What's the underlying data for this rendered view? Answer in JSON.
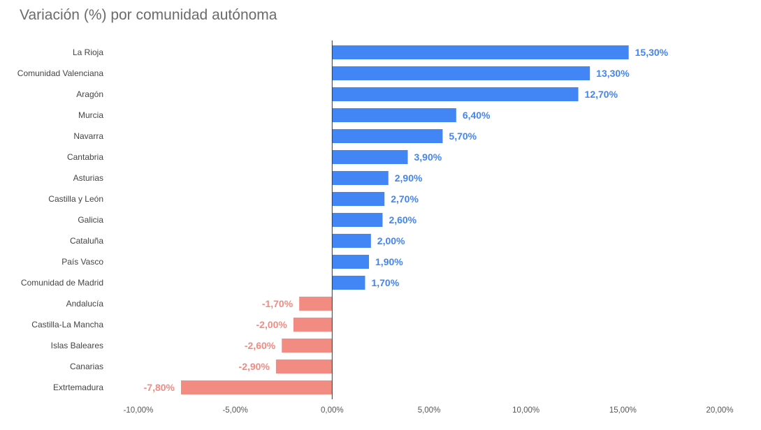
{
  "chart_data": {
    "type": "bar",
    "orientation": "horizontal",
    "title": "Variación (%) por comunidad autónoma",
    "xlabel": "",
    "ylabel": "",
    "categories": [
      "La Rioja",
      "Comunidad Valenciana",
      "Aragón",
      "Murcia",
      "Navarra",
      "Cantabria",
      "Asturias",
      "Castilla y León",
      "Galicia",
      "Cataluña",
      "País Vasco",
      "Comunidad de Madrid",
      "Andalucía",
      "Castilla-La Mancha",
      "Islas Baleares",
      "Canarias",
      "Extrtemadura"
    ],
    "values": [
      15.3,
      13.3,
      12.7,
      6.4,
      5.7,
      3.9,
      2.9,
      2.7,
      2.6,
      2.0,
      1.9,
      1.7,
      -1.7,
      -2.0,
      -2.6,
      -2.9,
      -7.8
    ],
    "data_labels": [
      "15,30%",
      "13,30%",
      "12,70%",
      "6,40%",
      "5,70%",
      "3,90%",
      "2,90%",
      "2,70%",
      "2,60%",
      "2,00%",
      "1,90%",
      "1,70%",
      "-1,70%",
      "-2,00%",
      "-2,60%",
      "-2,90%",
      "-7,80%"
    ],
    "xlim": [
      -10,
      20
    ],
    "x_ticks": [
      -10,
      -5,
      0,
      5,
      10,
      15,
      20
    ],
    "x_tick_labels": [
      "-10,00%",
      "-5,00%",
      "0,00%",
      "5,00%",
      "10,00%",
      "15,00%",
      "20,00%"
    ],
    "grid": false,
    "legend": "none",
    "colors": {
      "positive": "#4285f4",
      "negative": "#f28b82",
      "positive_label": "#4285f4",
      "negative_label": "#f28b82",
      "zero_line": "#333333"
    }
  }
}
